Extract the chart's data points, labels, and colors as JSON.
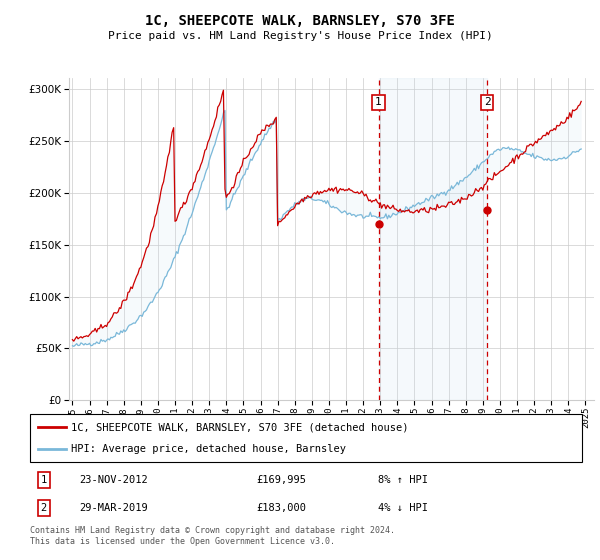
{
  "title": "1C, SHEEPCOTE WALK, BARNSLEY, S70 3FE",
  "subtitle": "Price paid vs. HM Land Registry's House Price Index (HPI)",
  "ytick_values": [
    0,
    50000,
    100000,
    150000,
    200000,
    250000,
    300000
  ],
  "ylim": [
    0,
    310000
  ],
  "xlim_start": 1994.8,
  "xlim_end": 2025.5,
  "marker1_x": 2012.9,
  "marker1_y": 169995,
  "marker1_label": "23-NOV-2012",
  "marker1_price": "£169,995",
  "marker1_hpi": "8% ↑ HPI",
  "marker2_x": 2019.25,
  "marker2_y": 183000,
  "marker2_label": "29-MAR-2019",
  "marker2_price": "£183,000",
  "marker2_hpi": "4% ↓ HPI",
  "hpi_color": "#7ab8d9",
  "price_color": "#cc0000",
  "shade_color": "#c8dff0",
  "grid_color": "#cccccc",
  "bg_color": "#f8f8f8",
  "legend_label_price": "1C, SHEEPCOTE WALK, BARNSLEY, S70 3FE (detached house)",
  "legend_label_hpi": "HPI: Average price, detached house, Barnsley",
  "footnote": "Contains HM Land Registry data © Crown copyright and database right 2024.\nThis data is licensed under the Open Government Licence v3.0.",
  "hpi_data_x": [
    1995.0,
    1995.08,
    1995.17,
    1995.25,
    1995.33,
    1995.42,
    1995.5,
    1995.58,
    1995.67,
    1995.75,
    1995.83,
    1995.92,
    1996.0,
    1996.08,
    1996.17,
    1996.25,
    1996.33,
    1996.42,
    1996.5,
    1996.58,
    1996.67,
    1996.75,
    1996.83,
    1996.92,
    1997.0,
    1997.08,
    1997.17,
    1997.25,
    1997.33,
    1997.42,
    1997.5,
    1997.58,
    1997.67,
    1997.75,
    1997.83,
    1997.92,
    1998.0,
    1998.08,
    1998.17,
    1998.25,
    1998.33,
    1998.42,
    1998.5,
    1998.58,
    1998.67,
    1998.75,
    1998.83,
    1998.92,
    1999.0,
    1999.08,
    1999.17,
    1999.25,
    1999.33,
    1999.42,
    1999.5,
    1999.58,
    1999.67,
    1999.75,
    1999.83,
    1999.92,
    2000.0,
    2000.08,
    2000.17,
    2000.25,
    2000.33,
    2000.42,
    2000.5,
    2000.58,
    2000.67,
    2000.75,
    2000.83,
    2000.92,
    2001.0,
    2001.08,
    2001.17,
    2001.25,
    2001.33,
    2001.42,
    2001.5,
    2001.58,
    2001.67,
    2001.75,
    2001.83,
    2001.92,
    2002.0,
    2002.08,
    2002.17,
    2002.25,
    2002.33,
    2002.42,
    2002.5,
    2002.58,
    2002.67,
    2002.75,
    2002.83,
    2002.92,
    2003.0,
    2003.08,
    2003.17,
    2003.25,
    2003.33,
    2003.42,
    2003.5,
    2003.58,
    2003.67,
    2003.75,
    2003.83,
    2003.92,
    2004.0,
    2004.08,
    2004.17,
    2004.25,
    2004.33,
    2004.42,
    2004.5,
    2004.58,
    2004.67,
    2004.75,
    2004.83,
    2004.92,
    2005.0,
    2005.08,
    2005.17,
    2005.25,
    2005.33,
    2005.42,
    2005.5,
    2005.58,
    2005.67,
    2005.75,
    2005.83,
    2005.92,
    2006.0,
    2006.08,
    2006.17,
    2006.25,
    2006.33,
    2006.42,
    2006.5,
    2006.58,
    2006.67,
    2006.75,
    2006.83,
    2006.92,
    2007.0,
    2007.08,
    2007.17,
    2007.25,
    2007.33,
    2007.42,
    2007.5,
    2007.58,
    2007.67,
    2007.75,
    2007.83,
    2007.92,
    2008.0,
    2008.08,
    2008.17,
    2008.25,
    2008.33,
    2008.42,
    2008.5,
    2008.58,
    2008.67,
    2008.75,
    2008.83,
    2008.92,
    2009.0,
    2009.08,
    2009.17,
    2009.25,
    2009.33,
    2009.42,
    2009.5,
    2009.58,
    2009.67,
    2009.75,
    2009.83,
    2009.92,
    2010.0,
    2010.08,
    2010.17,
    2010.25,
    2010.33,
    2010.42,
    2010.5,
    2010.58,
    2010.67,
    2010.75,
    2010.83,
    2010.92,
    2011.0,
    2011.08,
    2011.17,
    2011.25,
    2011.33,
    2011.42,
    2011.5,
    2011.58,
    2011.67,
    2011.75,
    2011.83,
    2011.92,
    2012.0,
    2012.08,
    2012.17,
    2012.25,
    2012.33,
    2012.42,
    2012.5,
    2012.58,
    2012.67,
    2012.75,
    2012.83,
    2012.92,
    2013.0,
    2013.08,
    2013.17,
    2013.25,
    2013.33,
    2013.42,
    2013.5,
    2013.58,
    2013.67,
    2013.75,
    2013.83,
    2013.92,
    2014.0,
    2014.08,
    2014.17,
    2014.25,
    2014.33,
    2014.42,
    2014.5,
    2014.58,
    2014.67,
    2014.75,
    2014.83,
    2014.92,
    2015.0,
    2015.08,
    2015.17,
    2015.25,
    2015.33,
    2015.42,
    2015.5,
    2015.58,
    2015.67,
    2015.75,
    2015.83,
    2015.92,
    2016.0,
    2016.08,
    2016.17,
    2016.25,
    2016.33,
    2016.42,
    2016.5,
    2016.58,
    2016.67,
    2016.75,
    2016.83,
    2016.92,
    2017.0,
    2017.08,
    2017.17,
    2017.25,
    2017.33,
    2017.42,
    2017.5,
    2017.58,
    2017.67,
    2017.75,
    2017.83,
    2017.92,
    2018.0,
    2018.08,
    2018.17,
    2018.25,
    2018.33,
    2018.42,
    2018.5,
    2018.58,
    2018.67,
    2018.75,
    2018.83,
    2018.92,
    2019.0,
    2019.08,
    2019.17,
    2019.25,
    2019.33,
    2019.42,
    2019.5,
    2019.58,
    2019.67,
    2019.75,
    2019.83,
    2019.92,
    2020.0,
    2020.08,
    2020.17,
    2020.25,
    2020.33,
    2020.42,
    2020.5,
    2020.58,
    2020.67,
    2020.75,
    2020.83,
    2020.92,
    2021.0,
    2021.08,
    2021.17,
    2021.25,
    2021.33,
    2021.42,
    2021.5,
    2021.58,
    2021.67,
    2021.75,
    2021.83,
    2021.92,
    2022.0,
    2022.08,
    2022.17,
    2022.25,
    2022.33,
    2022.42,
    2022.5,
    2022.58,
    2022.67,
    2022.75,
    2022.83,
    2022.92,
    2023.0,
    2023.08,
    2023.17,
    2023.25,
    2023.33,
    2023.42,
    2023.5,
    2023.58,
    2023.67,
    2023.75,
    2023.83,
    2023.92,
    2024.0,
    2024.08,
    2024.17,
    2024.25,
    2024.33,
    2024.42,
    2024.5,
    2024.58,
    2024.67,
    2024.75
  ],
  "hpi_data_y": [
    52000,
    52200,
    52500,
    52800,
    53100,
    53300,
    53500,
    53700,
    53900,
    54100,
    54300,
    54500,
    54700,
    54900,
    55100,
    55300,
    55600,
    55900,
    56200,
    56500,
    56900,
    57300,
    57700,
    58100,
    58600,
    59100,
    59700,
    60300,
    61000,
    61700,
    62400,
    63200,
    64100,
    65000,
    65900,
    66800,
    67700,
    68600,
    69600,
    70600,
    71600,
    72700,
    73800,
    74900,
    76100,
    77400,
    78700,
    80100,
    81500,
    83000,
    84600,
    86200,
    87900,
    89700,
    91600,
    93500,
    95500,
    97600,
    99800,
    102100,
    104400,
    106800,
    109300,
    111800,
    114400,
    117100,
    119900,
    122700,
    125600,
    128600,
    131700,
    134800,
    138000,
    141300,
    144600,
    148000,
    151500,
    155000,
    158600,
    162200,
    165800,
    169500,
    173200,
    177000,
    180800,
    184700,
    188600,
    192600,
    196600,
    200700,
    204800,
    209000,
    213200,
    217500,
    221800,
    226100,
    230500,
    234900,
    239300,
    243700,
    248100,
    252500,
    256900,
    261300,
    265700,
    270100,
    274500,
    278900,
    183100,
    185600,
    188200,
    190800,
    193500,
    196200,
    198900,
    201700,
    204500,
    207300,
    210100,
    212900,
    215700,
    218500,
    221300,
    224100,
    226900,
    229600,
    232300,
    235000,
    237600,
    240200,
    242700,
    245200,
    247600,
    250000,
    252300,
    254600,
    256800,
    259000,
    261100,
    263200,
    265200,
    267200,
    269100,
    271000,
    172900,
    174200,
    175600,
    176900,
    178300,
    179600,
    180900,
    182200,
    183500,
    184700,
    185900,
    187000,
    188100,
    189100,
    190000,
    190900,
    191700,
    192400,
    193000,
    193500,
    193900,
    194100,
    194200,
    194200,
    194100,
    194000,
    193800,
    193500,
    193100,
    192700,
    192200,
    191700,
    191100,
    190500,
    189800,
    189100,
    188400,
    187700,
    187000,
    186300,
    185600,
    184900,
    184200,
    183600,
    183000,
    182400,
    181900,
    181400,
    180900,
    180400,
    180000,
    179600,
    179200,
    178800,
    178500,
    178200,
    177900,
    177700,
    177500,
    177300,
    177100,
    176900,
    176800,
    176700,
    176600,
    176500,
    176400,
    176300,
    176200,
    176200,
    176100,
    176000,
    176000,
    176100,
    176300,
    176500,
    176800,
    177100,
    177500,
    177900,
    178300,
    178800,
    179300,
    179800,
    180300,
    180900,
    181500,
    182100,
    182700,
    183300,
    183900,
    184500,
    185100,
    185800,
    186400,
    187000,
    187600,
    188200,
    188800,
    189400,
    190000,
    190600,
    191200,
    191800,
    192400,
    193000,
    193600,
    194200,
    194800,
    195400,
    196000,
    196600,
    197200,
    197800,
    198500,
    199200,
    199900,
    200600,
    201300,
    202100,
    202900,
    203700,
    204600,
    205500,
    206400,
    207300,
    208300,
    209300,
    210300,
    211300,
    212300,
    213400,
    214500,
    215600,
    216700,
    217900,
    219100,
    220300,
    221500,
    222800,
    224100,
    225400,
    226700,
    228000,
    229300,
    230600,
    231900,
    233100,
    234300,
    235500,
    236600,
    237700,
    238700,
    239600,
    240400,
    241100,
    241700,
    242100,
    242400,
    242500,
    242600,
    242500,
    242400,
    242200,
    242000,
    241700,
    241400,
    241000,
    240600,
    240200,
    239700,
    239200,
    238700,
    238200,
    237700,
    237200,
    236700,
    236200,
    235700,
    235300,
    234900,
    234500,
    234100,
    233700,
    233300,
    233000,
    232700,
    232400,
    232200,
    232000,
    231800,
    231700,
    231700,
    231700,
    231800,
    231900,
    232100,
    232400,
    232700,
    233100,
    233500,
    233900,
    234400,
    235000,
    235600,
    236200,
    236900,
    237600,
    238300,
    239100,
    239900,
    240700,
    241500,
    242400,
    243300,
    244200
  ],
  "price_data_x": [
    1995.0,
    1995.08,
    1995.17,
    1995.25,
    1995.33,
    1995.42,
    1995.5,
    1995.58,
    1995.67,
    1995.75,
    1995.83,
    1995.92,
    1996.0,
    1996.08,
    1996.17,
    1996.25,
    1996.33,
    1996.42,
    1996.5,
    1996.58,
    1996.67,
    1996.75,
    1996.83,
    1996.92,
    1997.0,
    1997.08,
    1997.17,
    1997.25,
    1997.33,
    1997.42,
    1997.5,
    1997.58,
    1997.67,
    1997.75,
    1997.83,
    1997.92,
    1998.0,
    1998.08,
    1998.17,
    1998.25,
    1998.33,
    1998.42,
    1998.5,
    1998.58,
    1998.67,
    1998.75,
    1998.83,
    1998.92,
    1999.0,
    1999.08,
    1999.17,
    1999.25,
    1999.33,
    1999.42,
    1999.5,
    1999.58,
    1999.67,
    1999.75,
    1999.83,
    1999.92,
    2000.0,
    2000.08,
    2000.17,
    2000.25,
    2000.33,
    2000.42,
    2000.5,
    2000.58,
    2000.67,
    2000.75,
    2000.83,
    2000.92,
    2001.0,
    2001.08,
    2001.17,
    2001.25,
    2001.33,
    2001.42,
    2001.5,
    2001.58,
    2001.67,
    2001.75,
    2001.83,
    2001.92,
    2002.0,
    2002.08,
    2002.17,
    2002.25,
    2002.33,
    2002.42,
    2002.5,
    2002.58,
    2002.67,
    2002.75,
    2002.83,
    2002.92,
    2003.0,
    2003.08,
    2003.17,
    2003.25,
    2003.33,
    2003.42,
    2003.5,
    2003.58,
    2003.67,
    2003.75,
    2003.83,
    2003.92,
    2004.0,
    2004.08,
    2004.17,
    2004.25,
    2004.33,
    2004.42,
    2004.5,
    2004.58,
    2004.67,
    2004.75,
    2004.83,
    2004.92,
    2005.0,
    2005.08,
    2005.17,
    2005.25,
    2005.33,
    2005.42,
    2005.5,
    2005.58,
    2005.67,
    2005.75,
    2005.83,
    2005.92,
    2006.0,
    2006.08,
    2006.17,
    2006.25,
    2006.33,
    2006.42,
    2006.5,
    2006.58,
    2006.67,
    2006.75,
    2006.83,
    2006.92,
    2007.0,
    2007.08,
    2007.17,
    2007.25,
    2007.33,
    2007.42,
    2007.5,
    2007.58,
    2007.67,
    2007.75,
    2007.83,
    2007.92,
    2008.0,
    2008.08,
    2008.17,
    2008.25,
    2008.33,
    2008.42,
    2008.5,
    2008.58,
    2008.67,
    2008.75,
    2008.83,
    2008.92,
    2009.0,
    2009.08,
    2009.17,
    2009.25,
    2009.33,
    2009.42,
    2009.5,
    2009.58,
    2009.67,
    2009.75,
    2009.83,
    2009.92,
    2010.0,
    2010.08,
    2010.17,
    2010.25,
    2010.33,
    2010.42,
    2010.5,
    2010.58,
    2010.67,
    2010.75,
    2010.83,
    2010.92,
    2011.0,
    2011.08,
    2011.17,
    2011.25,
    2011.33,
    2011.42,
    2011.5,
    2011.58,
    2011.67,
    2011.75,
    2011.83,
    2011.92,
    2012.0,
    2012.08,
    2012.17,
    2012.25,
    2012.33,
    2012.42,
    2012.5,
    2012.58,
    2012.67,
    2012.75,
    2012.83,
    2012.92,
    2013.0,
    2013.08,
    2013.17,
    2013.25,
    2013.33,
    2013.42,
    2013.5,
    2013.58,
    2013.67,
    2013.75,
    2013.83,
    2013.92,
    2014.0,
    2014.08,
    2014.17,
    2014.25,
    2014.33,
    2014.42,
    2014.5,
    2014.58,
    2014.67,
    2014.75,
    2014.83,
    2014.92,
    2015.0,
    2015.08,
    2015.17,
    2015.25,
    2015.33,
    2015.42,
    2015.5,
    2015.58,
    2015.67,
    2015.75,
    2015.83,
    2015.92,
    2016.0,
    2016.08,
    2016.17,
    2016.25,
    2016.33,
    2016.42,
    2016.5,
    2016.58,
    2016.67,
    2016.75,
    2016.83,
    2016.92,
    2017.0,
    2017.08,
    2017.17,
    2017.25,
    2017.33,
    2017.42,
    2017.5,
    2017.58,
    2017.67,
    2017.75,
    2017.83,
    2017.92,
    2018.0,
    2018.08,
    2018.17,
    2018.25,
    2018.33,
    2018.42,
    2018.5,
    2018.58,
    2018.67,
    2018.75,
    2018.83,
    2018.92,
    2019.0,
    2019.08,
    2019.17,
    2019.25,
    2019.33,
    2019.42,
    2019.5,
    2019.58,
    2019.67,
    2019.75,
    2019.83,
    2019.92,
    2020.0,
    2020.08,
    2020.17,
    2020.25,
    2020.33,
    2020.42,
    2020.5,
    2020.58,
    2020.67,
    2020.75,
    2020.83,
    2020.92,
    2021.0,
    2021.08,
    2021.17,
    2021.25,
    2021.33,
    2021.42,
    2021.5,
    2021.58,
    2021.67,
    2021.75,
    2021.83,
    2021.92,
    2022.0,
    2022.08,
    2022.17,
    2022.25,
    2022.33,
    2022.42,
    2022.5,
    2022.58,
    2022.67,
    2022.75,
    2022.83,
    2022.92,
    2023.0,
    2023.08,
    2023.17,
    2023.25,
    2023.33,
    2023.42,
    2023.5,
    2023.58,
    2023.67,
    2023.75,
    2023.83,
    2023.92,
    2024.0,
    2024.08,
    2024.17,
    2024.25,
    2024.33,
    2024.42,
    2024.5,
    2024.58,
    2024.67,
    2024.75
  ],
  "price_data_y": [
    58000,
    58300,
    58700,
    59100,
    59500,
    59900,
    60300,
    60700,
    61100,
    61600,
    62100,
    62700,
    63300,
    63900,
    64600,
    65300,
    66100,
    67000,
    67900,
    68800,
    69800,
    70900,
    72000,
    73100,
    74300,
    75600,
    76900,
    78300,
    79800,
    81400,
    83000,
    84800,
    86600,
    88500,
    90500,
    92600,
    94800,
    97100,
    99500,
    102000,
    104600,
    107300,
    110100,
    113000,
    116100,
    119300,
    122600,
    126100,
    129700,
    133400,
    137300,
    141300,
    145500,
    149800,
    154300,
    159000,
    163900,
    169000,
    174300,
    179800,
    185500,
    191500,
    197700,
    204100,
    210800,
    217700,
    224900,
    232400,
    240100,
    248100,
    256500,
    265200,
    174200,
    176300,
    178500,
    180800,
    183200,
    185700,
    188300,
    191000,
    193800,
    196700,
    199700,
    202800,
    206000,
    209300,
    212700,
    216200,
    219800,
    223500,
    227300,
    231200,
    235200,
    239300,
    243500,
    247700,
    252000,
    256400,
    260900,
    265400,
    270000,
    274700,
    279400,
    284200,
    289000,
    293900,
    298800,
    203700,
    194600,
    197200,
    199900,
    202600,
    205400,
    208200,
    211100,
    214000,
    216900,
    219800,
    222700,
    225600,
    228400,
    231200,
    233900,
    236600,
    239200,
    241700,
    244100,
    246400,
    248700,
    250800,
    252800,
    254700,
    256500,
    258200,
    259800,
    261300,
    262700,
    264000,
    265200,
    266300,
    267300,
    268200,
    269000,
    269700,
    170300,
    171600,
    173000,
    174300,
    175700,
    177100,
    178500,
    179900,
    181300,
    182700,
    184100,
    185500,
    186800,
    188100,
    189300,
    190500,
    191600,
    192700,
    193700,
    194600,
    195500,
    196300,
    197100,
    197800,
    198400,
    199000,
    199500,
    200000,
    200400,
    200800,
    201200,
    201500,
    201800,
    202100,
    202300,
    202500,
    202700,
    202800,
    202900,
    203000,
    203100,
    203100,
    203100,
    203100,
    203100,
    203000,
    202900,
    202800,
    202700,
    202500,
    202300,
    202000,
    201700,
    201400,
    201000,
    200600,
    200200,
    199700,
    199200,
    198600,
    198000,
    197400,
    196700,
    196000,
    195200,
    194500,
    193700,
    192900,
    192100,
    191300,
    190500,
    189700,
    189000,
    188400,
    187800,
    187200,
    186700,
    186200,
    185800,
    185300,
    184900,
    184500,
    184100,
    183800,
    183500,
    183200,
    182900,
    182600,
    182400,
    182200,
    182100,
    182000,
    181900,
    181900,
    181900,
    181900,
    181900,
    182000,
    182100,
    182200,
    182300,
    182500,
    182600,
    182800,
    183000,
    183200,
    183400,
    183600,
    183800,
    184100,
    184400,
    184700,
    185000,
    185300,
    185600,
    186000,
    186300,
    186700,
    187100,
    187500,
    188000,
    188500,
    189000,
    189500,
    190100,
    190700,
    191300,
    191900,
    192500,
    193200,
    193900,
    194600,
    195400,
    196200,
    197000,
    197800,
    198700,
    199600,
    200500,
    201400,
    202400,
    203400,
    204400,
    205400,
    206500,
    207500,
    208600,
    209700,
    210800,
    211900,
    213000,
    214200,
    215400,
    216500,
    217700,
    218900,
    220100,
    221300,
    222500,
    223700,
    224900,
    226100,
    227300,
    228500,
    229700,
    230900,
    232100,
    233300,
    234500,
    235700,
    236800,
    237900,
    239100,
    240200,
    241300,
    242400,
    243500,
    244600,
    245600,
    246700,
    247700,
    248700,
    249700,
    250700,
    251600,
    252600,
    253500,
    254500,
    255400,
    256400,
    257400,
    258300,
    259300,
    260300,
    261300,
    262300,
    263400,
    264500,
    265600,
    266700,
    267900,
    269100,
    270400,
    271700,
    273000,
    274300,
    275700,
    277100,
    278500,
    280000,
    281500,
    283000,
    284600,
    286200
  ]
}
